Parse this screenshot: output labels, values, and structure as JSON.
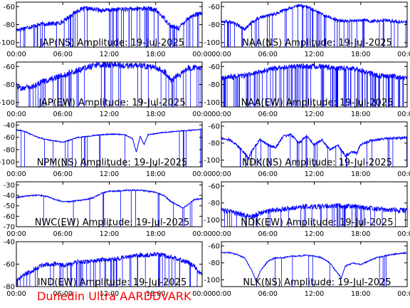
{
  "footer": {
    "credit": "Dunedin Ultra AARDDVARK"
  },
  "colors": {
    "trace": "#0000ff",
    "axes": "#000000",
    "credit": "#ff0000",
    "background": "#ffffff"
  },
  "chart_data": [
    {
      "type": "line",
      "title": "JAP(NS) Amplitude: 19-Jul-2025",
      "x_ticks": [
        "00:00",
        "06:00",
        "12:00",
        "18:00",
        "00:00"
      ],
      "xlim_hours": [
        0,
        24
      ],
      "ylim": [
        -105,
        -55
      ],
      "y_ticks": [
        -100,
        -80,
        -60
      ],
      "noise": 2.5,
      "spikes": 60,
      "series": [
        {
          "x": [
            0,
            1,
            2,
            3,
            4,
            5,
            6,
            7,
            8,
            9,
            10,
            11,
            12,
            13,
            14,
            15,
            16,
            17,
            18,
            19,
            20,
            21,
            22,
            23,
            24
          ],
          "values": [
            -86,
            -84,
            -82,
            -80,
            -79,
            -79,
            -77,
            -70,
            -64,
            -62,
            -63,
            -64,
            -64,
            -63,
            -63,
            -63,
            -62,
            -62,
            -64,
            -72,
            -82,
            -84,
            -74,
            -69,
            -68
          ]
        }
      ]
    },
    {
      "type": "line",
      "title": "NAA(NS) Amplitude: 19-Jul-2025",
      "x_ticks": [
        "00:00",
        "06:00",
        "12:00",
        "18:00",
        "00:00"
      ],
      "xlim_hours": [
        0,
        24
      ],
      "ylim": [
        -105,
        -55
      ],
      "y_ticks": [
        -100,
        -80,
        -60
      ],
      "noise": 1.8,
      "spikes": 55,
      "series": [
        {
          "x": [
            0,
            1,
            2,
            3,
            4,
            5,
            6,
            7,
            8,
            9,
            10,
            11,
            12,
            13,
            14,
            15,
            16,
            17,
            18,
            19,
            20,
            21,
            22,
            23,
            24
          ],
          "values": [
            -76,
            -77,
            -80,
            -85,
            -77,
            -72,
            -70,
            -68,
            -64,
            -61,
            -59,
            -60,
            -64,
            -68,
            -72,
            -75,
            -76,
            -76,
            -75,
            -76,
            -76,
            -75,
            -76,
            -77,
            -77
          ]
        }
      ]
    },
    {
      "type": "line",
      "title": "JAP(EW) Amplitude: 19-Jul-2025",
      "x_ticks": [
        "00:00",
        "06:00",
        "12:00",
        "18:00",
        "00:00"
      ],
      "xlim_hours": [
        0,
        24
      ],
      "ylim": [
        -105,
        -55
      ],
      "y_ticks": [
        -100,
        -80,
        -60
      ],
      "noise": 3.5,
      "spikes": 50,
      "series": [
        {
          "x": [
            0,
            1,
            2,
            3,
            4,
            5,
            6,
            7,
            8,
            9,
            10,
            11,
            12,
            13,
            14,
            15,
            16,
            17,
            18,
            19,
            20,
            21,
            22,
            23,
            24
          ],
          "values": [
            -82,
            -84,
            -83,
            -78,
            -75,
            -72,
            -70,
            -67,
            -64,
            -61,
            -59,
            -58,
            -58,
            -58,
            -59,
            -59,
            -59,
            -60,
            -61,
            -65,
            -75,
            -70,
            -62,
            -61,
            -60
          ]
        }
      ]
    },
    {
      "type": "line",
      "title": "NAA(EW) Amplitude: 19-Jul-2025",
      "x_ticks": [
        "00:00",
        "06:00",
        "12:00",
        "18:00",
        "00:00"
      ],
      "xlim_hours": [
        0,
        24
      ],
      "ylim": [
        -105,
        -55
      ],
      "y_ticks": [
        -100,
        -80,
        -60
      ],
      "noise": 3.0,
      "spikes": 110,
      "series": [
        {
          "x": [
            0,
            1,
            2,
            3,
            4,
            5,
            6,
            7,
            8,
            9,
            10,
            11,
            12,
            13,
            14,
            15,
            16,
            17,
            18,
            19,
            20,
            21,
            22,
            23,
            24
          ],
          "values": [
            -73,
            -72,
            -71,
            -70,
            -68,
            -66,
            -64,
            -62,
            -61,
            -60,
            -60,
            -60,
            -60,
            -60,
            -61,
            -62,
            -62,
            -62,
            -64,
            -67,
            -70,
            -71,
            -71,
            -72,
            -72
          ]
        }
      ]
    },
    {
      "type": "line",
      "title": "NPM(NS) Amplitude: 19-Jul-2025",
      "x_ticks": [
        "00:00",
        "06:00",
        "12:00",
        "18:00",
        "00:00"
      ],
      "xlim_hours": [
        0,
        24
      ],
      "ylim": [
        -108,
        -35
      ],
      "y_ticks": [
        -100,
        -80,
        -60,
        -40
      ],
      "noise": 0.8,
      "spikes": 20,
      "series": [
        {
          "x": [
            0,
            1,
            2,
            3,
            4,
            5,
            6,
            7,
            8,
            9,
            10,
            11,
            12,
            13,
            14,
            15,
            15.5,
            16,
            16.5,
            17,
            18,
            19,
            20,
            21,
            22,
            23,
            24
          ],
          "values": [
            -48,
            -50,
            -56,
            -61,
            -64,
            -66,
            -68,
            -64,
            -60,
            -59,
            -57,
            -56,
            -55,
            -55,
            -56,
            -62,
            -84,
            -58,
            -72,
            -56,
            -54,
            -52,
            -51,
            -50,
            -49,
            -48,
            -47
          ]
        }
      ]
    },
    {
      "type": "line",
      "title": "NDK(NS) Amplitude: 19-Jul-2025",
      "x_ticks": [
        "00:00",
        "06:00",
        "12:00",
        "18:00",
        "00:00"
      ],
      "xlim_hours": [
        0,
        24
      ],
      "ylim": [
        -108,
        -55
      ],
      "y_ticks": [
        -100,
        -80,
        -60
      ],
      "noise": 1.5,
      "spikes": 30,
      "series": [
        {
          "x": [
            0,
            1,
            2,
            3,
            3.5,
            4,
            5,
            6,
            7,
            8,
            9,
            10,
            11,
            12,
            13,
            14,
            15,
            16,
            17,
            17.5,
            18,
            19,
            20,
            21,
            22,
            23,
            24
          ],
          "values": [
            -74,
            -76,
            -82,
            -92,
            -98,
            -88,
            -76,
            -82,
            -85,
            -72,
            -70,
            -80,
            -72,
            -82,
            -76,
            -88,
            -82,
            -95,
            -90,
            -92,
            -82,
            -78,
            -76,
            -75,
            -74,
            -74,
            -73
          ]
        }
      ]
    },
    {
      "type": "line",
      "title": "NWC(EW) Amplitude: 19-Jul-2025",
      "x_ticks": [
        "00:00",
        "06:00",
        "12:00",
        "18:00",
        "00:00"
      ],
      "xlim_hours": [
        0,
        24
      ],
      "ylim": [
        -70,
        -27
      ],
      "y_ticks": [
        -70,
        -60,
        -50,
        -40,
        -30
      ],
      "noise": 0.6,
      "spikes": 15,
      "series": [
        {
          "x": [
            0,
            1,
            2,
            3,
            4,
            5,
            6,
            7,
            8,
            9,
            10,
            11,
            12,
            13,
            14,
            15,
            16,
            17,
            18,
            19,
            20,
            21,
            21.5,
            22,
            23,
            24
          ],
          "values": [
            -42,
            -41,
            -40,
            -40,
            -41,
            -44,
            -46,
            -46,
            -45,
            -44,
            -42,
            -38,
            -36,
            -36,
            -35,
            -35,
            -35,
            -36,
            -37,
            -40,
            -46,
            -50,
            -52,
            -50,
            -44,
            -43
          ]
        }
      ]
    },
    {
      "type": "line",
      "title": "NDK(EW) Amplitude: 19-Jul-2025",
      "x_ticks": [
        "00:00",
        "06:00",
        "12:00",
        "18:00",
        "00:00"
      ],
      "xlim_hours": [
        0,
        24
      ],
      "ylim": [
        -108,
        -55
      ],
      "y_ticks": [
        -100,
        -80,
        -60
      ],
      "noise": 3.0,
      "spikes": 45,
      "series": [
        {
          "x": [
            0,
            1,
            2,
            3,
            4,
            5,
            6,
            7,
            8,
            9,
            10,
            11,
            12,
            13,
            14,
            15,
            16,
            17,
            18,
            19,
            20,
            21,
            22,
            23,
            24
          ],
          "values": [
            -88,
            -90,
            -92,
            -95,
            -96,
            -92,
            -90,
            -88,
            -87,
            -86,
            -85,
            -84,
            -84,
            -84,
            -83,
            -83,
            -84,
            -84,
            -85,
            -86,
            -87,
            -88,
            -88,
            -89,
            -88
          ]
        }
      ]
    },
    {
      "type": "line",
      "title": "IND(EW) Amplitude: 19-Jul-2025",
      "x_ticks": [
        "00:00",
        "06:00",
        "12:00",
        "18:00",
        "00:00"
      ],
      "xlim_hours": [
        0,
        24
      ],
      "ylim": [
        -80,
        -40
      ],
      "y_ticks": [
        -80,
        -60,
        -40
      ],
      "noise": 2.0,
      "spikes": 60,
      "series": [
        {
          "x": [
            0,
            1,
            2,
            3,
            4,
            5,
            6,
            7,
            8,
            9,
            10,
            11,
            12,
            13,
            14,
            15,
            16,
            17,
            18,
            19,
            20,
            21,
            22,
            23,
            24
          ],
          "values": [
            -74,
            -70,
            -66,
            -62,
            -60,
            -60,
            -61,
            -60,
            -58,
            -58,
            -57,
            -56,
            -56,
            -55,
            -54,
            -53,
            -52,
            -52,
            -51,
            -52,
            -54,
            -56,
            -58,
            -62,
            -70
          ]
        }
      ]
    },
    {
      "type": "line",
      "title": "NLK(NS) Amplitude: 19-Jul-2025",
      "x_ticks": [
        "00:00",
        "06:00",
        "12:00",
        "18:00",
        "00:00"
      ],
      "xlim_hours": [
        0,
        24
      ],
      "ylim": [
        -108,
        -55
      ],
      "y_ticks": [
        -100,
        -80,
        -60
      ],
      "noise": 0.7,
      "spikes": 12,
      "series": [
        {
          "x": [
            0,
            1,
            2,
            3,
            4,
            4.5,
            5,
            6,
            7,
            8,
            9,
            10,
            11,
            12,
            13,
            14,
            15,
            15.5,
            16,
            17,
            18,
            19,
            20,
            21,
            22,
            23,
            24
          ],
          "values": [
            -68,
            -68,
            -70,
            -74,
            -90,
            -102,
            -90,
            -78,
            -74,
            -74,
            -72,
            -72,
            -71,
            -72,
            -74,
            -80,
            -92,
            -98,
            -84,
            -80,
            -82,
            -78,
            -74,
            -72,
            -70,
            -69,
            -68
          ]
        }
      ]
    }
  ]
}
